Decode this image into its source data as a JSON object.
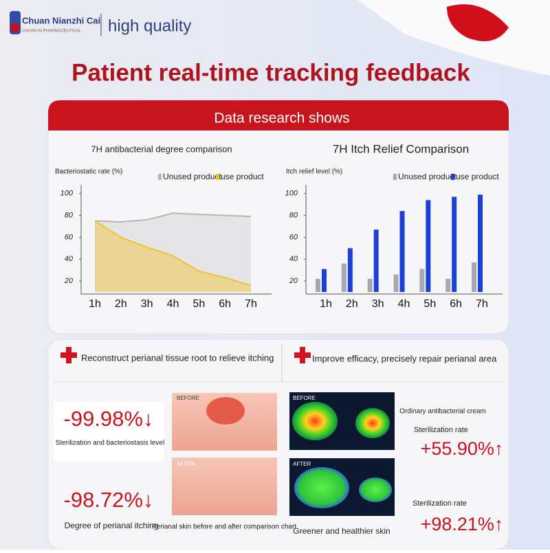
{
  "brand": {
    "name": "Chuan Nianzhi Cai",
    "subname": "CHUAN NI PHARMACEUTICAL",
    "tagline": "high quality"
  },
  "title": "Patient real-time tracking feedback",
  "banner": "Data research shows",
  "chart_data": [
    {
      "type": "area",
      "title": "7H antibacterial degree comparison",
      "y_label": "Bacteriostatic rate (%)",
      "categories": [
        "1h",
        "2h",
        "3h",
        "4h",
        "5h",
        "6h",
        "7h"
      ],
      "series": [
        {
          "name": "Unused product",
          "color": "#b5b5b5",
          "values": [
            75,
            74,
            76,
            82,
            81,
            80,
            79
          ]
        },
        {
          "name": "use product",
          "color": "#f2c12e",
          "values": [
            75,
            60,
            51,
            43,
            29,
            23,
            16
          ]
        }
      ],
      "ylim": [
        10,
        108
      ],
      "yticks": [
        20,
        40,
        60,
        80,
        100
      ]
    },
    {
      "type": "bar",
      "title": "7H Itch Relief Comparison",
      "y_label": "Itch relief level (%)",
      "categories": [
        "1h",
        "2h",
        "3h",
        "4h",
        "5h",
        "6h",
        "7h"
      ],
      "series": [
        {
          "name": "Unused product",
          "color": "#a7a7b0",
          "values": [
            22,
            36,
            22,
            26,
            31,
            22,
            37
          ]
        },
        {
          "name": "use product",
          "color": "#1c3fd8",
          "values": [
            31,
            50,
            67,
            84,
            94,
            97,
            99
          ]
        }
      ],
      "ylim": [
        10,
        108
      ],
      "yticks": [
        20,
        40,
        60,
        80,
        100
      ]
    }
  ],
  "lower": {
    "left": {
      "heading": "Reconstruct perianal tissue root to relieve itching",
      "stat1": "-99.98%↓",
      "stat1_label": "Sterilization and bacteriostasis level",
      "stat2": "-98.72%↓",
      "stat2_label": "Degree of perianal itching",
      "before": "BEFORE",
      "after": "AFTER",
      "caption": "Perianal skin before and after comparison chart"
    },
    "right": {
      "heading": "Improve efficacy, precisely repair perianal area",
      "before": "BEFORE",
      "after": "AFTER",
      "caption": "Greener and healthier skin",
      "note": "Ordinary antibacterial cream",
      "rate1_label": "Sterilization rate",
      "rate1": "+55.90%↑",
      "rate2_label": "Sterilization rate",
      "rate2": "+98.21%↑"
    }
  }
}
